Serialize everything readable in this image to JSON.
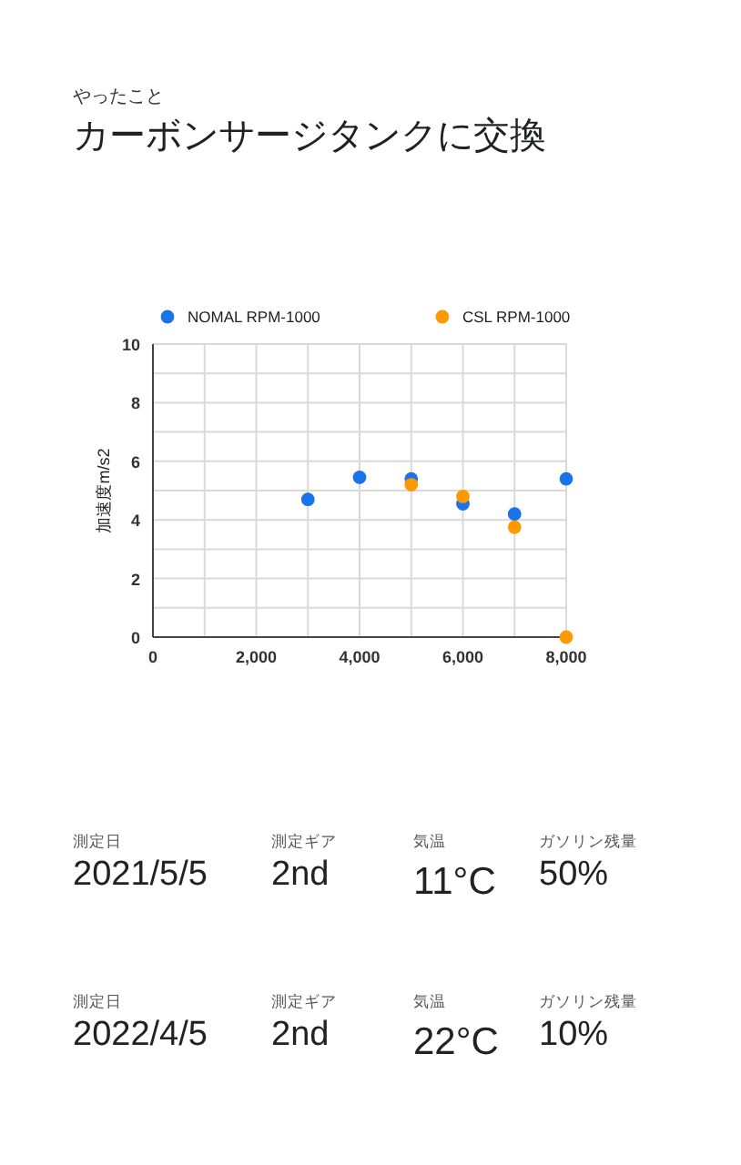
{
  "chart_data": [
    {
      "type": "scatter",
      "subtitle": "やったこと",
      "title": "カーボンサージタンクに交換",
      "ylabel": "加速度m/s2",
      "legend": "top",
      "grid": true,
      "marker": "circle",
      "series": [
        {
          "name": "NOMAL RPM-1000",
          "color": "#1a73e8",
          "x": [
            3000,
            4000,
            5000,
            6000,
            7000,
            8000
          ],
          "values": [
            4.7,
            5.45,
            5.4,
            4.55,
            4.2,
            5.4
          ]
        },
        {
          "name": "CSL RPM-1000",
          "color": "#ff9900",
          "x": [
            5000,
            6000,
            7000,
            8000
          ],
          "values": [
            5.2,
            4.8,
            3.75,
            0
          ]
        }
      ],
      "xlim": [
        0,
        8000
      ],
      "xticks": [
        0,
        {
          "value": 1000,
          "label": null
        },
        {
          "value": 2000,
          "label": "2,000"
        },
        {
          "value": 3000,
          "label": null
        },
        {
          "value": 4000,
          "label": "4,000"
        },
        {
          "value": 5000,
          "label": null
        },
        {
          "value": 6000,
          "label": "6,000"
        },
        {
          "value": 7000,
          "label": null
        },
        {
          "value": 8000,
          "label": "8,000"
        }
      ],
      "ylim": [
        0,
        10
      ],
      "yticks": [
        0,
        {
          "value": 1,
          "label": null
        },
        2,
        {
          "value": 3,
          "label": null
        },
        4,
        {
          "value": 5,
          "label": null
        },
        6,
        {
          "value": 7,
          "label": null
        },
        8,
        {
          "value": 9,
          "label": null
        },
        10
      ]
    },
    {
      "type": "other",
      "annotations": [
        "測定日",
        "2021/5/5",
        "測定ギア",
        "2nd",
        "気温",
        "11°C",
        "ガソリン残量",
        "50%"
      ]
    },
    {
      "type": "other",
      "annotations": [
        "測定日",
        "2022/4/5",
        "測定ギア",
        "2nd",
        "気温",
        "22°C",
        "ガソリン残量",
        "10%"
      ]
    }
  ]
}
